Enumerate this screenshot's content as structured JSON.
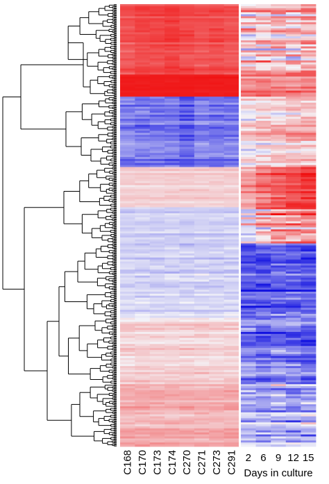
{
  "chart_data": {
    "type": "heatmap",
    "color_scale": {
      "low": "#1010e0",
      "mid": "#f4f4f8",
      "high": "#f01010"
    },
    "divider_color": "#ffffff",
    "groups": [
      {
        "name": "",
        "columns": [
          "C168",
          "C170",
          "C173",
          "C174",
          "C270",
          "C271",
          "C273",
          "C291"
        ]
      },
      {
        "name": "Days in culture",
        "columns": [
          "2",
          "6",
          "9",
          "12",
          "15"
        ]
      }
    ],
    "row_clusters": [
      {
        "row_fraction": 0.16,
        "group_values": [
          0.7,
          0.15
        ],
        "group_noise": [
          0.15,
          0.55
        ],
        "column_offsets": [
          0.0,
          0.05,
          0.05,
          0.1,
          0.05,
          0.0,
          0.05,
          0.0,
          0.05,
          0.0,
          0.1,
          0.0,
          0.1
        ]
      },
      {
        "row_fraction": 0.05,
        "group_values": [
          0.95,
          0.55
        ],
        "group_noise": [
          0.05,
          0.35
        ],
        "column_offsets": [
          0.0,
          0.0,
          0.0,
          0.0,
          0.0,
          0.0,
          0.0,
          0.0,
          0.0,
          0.05,
          0.0,
          0.0,
          0.0
        ]
      },
      {
        "row_fraction": 0.16,
        "group_values": [
          -0.55,
          0.15
        ],
        "group_noise": [
          0.3,
          0.35
        ],
        "column_offsets": [
          0.05,
          0.0,
          0.0,
          0.0,
          -0.1,
          0.05,
          0.0,
          0.0,
          -0.05,
          0.0,
          0.05,
          0.1,
          0.1
        ]
      },
      {
        "row_fraction": 0.09,
        "group_values": [
          0.15,
          0.6
        ],
        "group_noise": [
          0.12,
          0.25
        ],
        "column_offsets": [
          0.0,
          0.0,
          0.0,
          0.0,
          0.0,
          0.0,
          0.0,
          0.0,
          -0.2,
          0.0,
          0.1,
          0.15,
          0.25
        ]
      },
      {
        "row_fraction": 0.08,
        "group_values": [
          -0.15,
          0.3
        ],
        "group_noise": [
          0.15,
          0.6
        ],
        "column_offsets": [
          0.0,
          0.0,
          0.0,
          0.0,
          0.0,
          0.0,
          0.0,
          0.0,
          -0.4,
          -0.1,
          0.05,
          0.1,
          0.1
        ]
      },
      {
        "row_fraction": 0.17,
        "group_values": [
          -0.15,
          -0.55
        ],
        "group_noise": [
          0.2,
          0.4
        ],
        "column_offsets": [
          0.0,
          0.0,
          0.0,
          0.0,
          0.0,
          0.0,
          0.0,
          0.0,
          -0.1,
          -0.1,
          -0.05,
          -0.05,
          -0.1
        ]
      },
      {
        "row_fraction": 0.15,
        "group_values": [
          0.15,
          -0.45
        ],
        "group_noise": [
          0.18,
          0.4
        ],
        "column_offsets": [
          0.0,
          0.0,
          0.0,
          0.0,
          0.0,
          0.0,
          0.0,
          0.0,
          0.0,
          -0.1,
          0.0,
          -0.05,
          -0.2
        ]
      },
      {
        "row_fraction": 0.14,
        "group_values": [
          0.3,
          -0.25
        ],
        "group_noise": [
          0.18,
          0.45
        ],
        "column_offsets": [
          0.0,
          0.0,
          0.0,
          0.0,
          0.0,
          0.0,
          0.0,
          0.0,
          0.0,
          0.0,
          0.0,
          -0.05,
          0.0
        ]
      }
    ],
    "dendrogram": {
      "side": "left",
      "leaf_count": 440,
      "color": "#000000"
    },
    "xlabel": "Days in culture",
    "title": "",
    "legend": "none"
  }
}
